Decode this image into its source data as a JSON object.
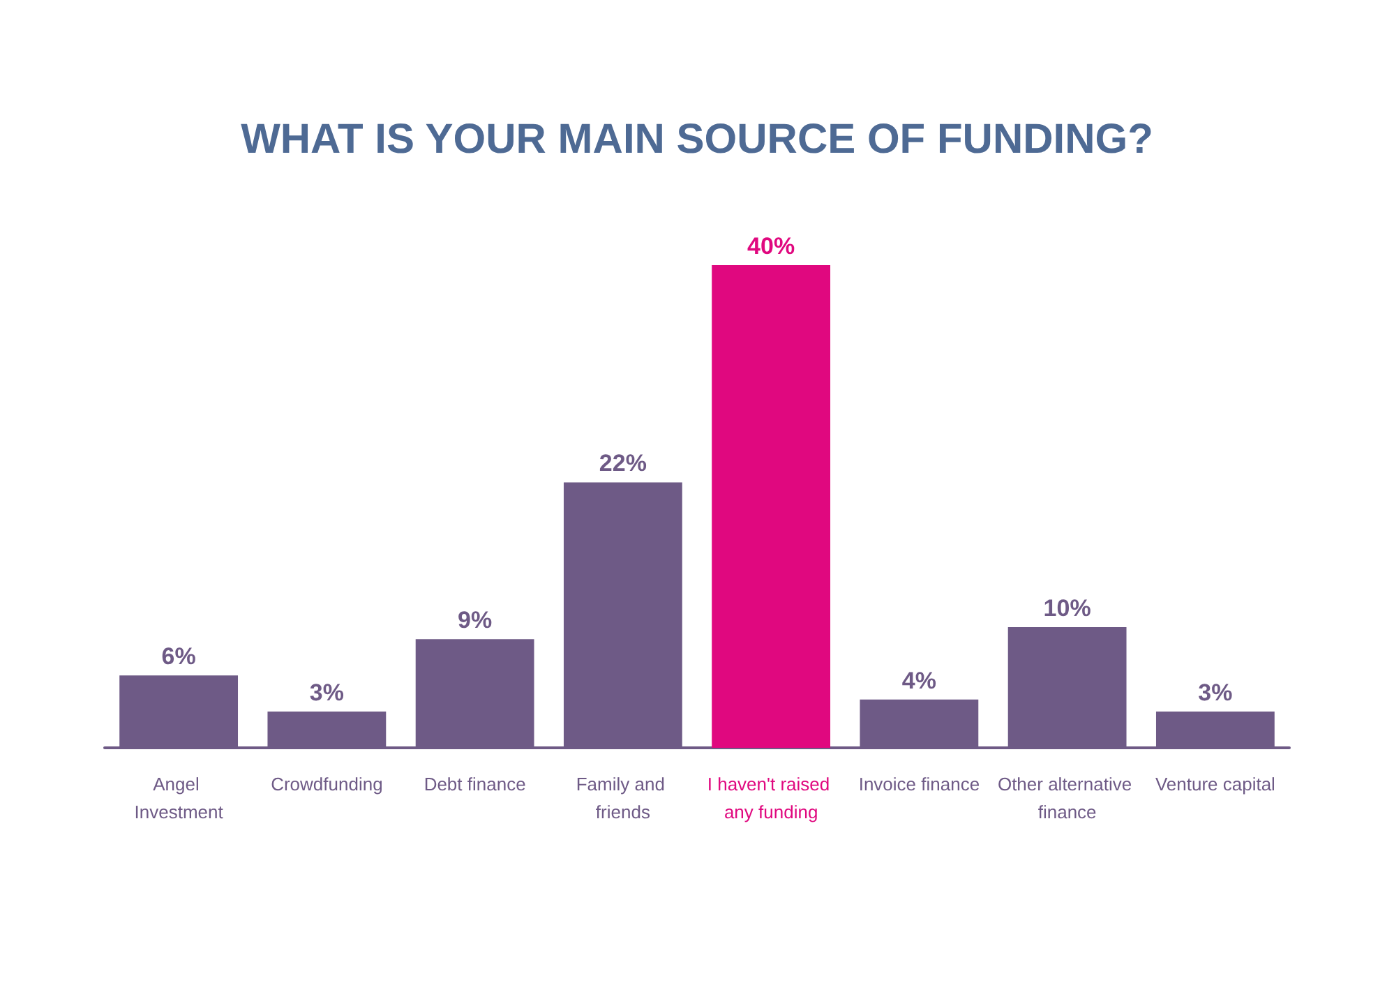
{
  "chart_data": {
    "type": "bar",
    "title": "WHAT IS YOUR MAIN SOURCE OF FUNDING?",
    "categories": [
      "Angel Investment",
      "Crowdfunding",
      "Debt finance",
      "Family and friends",
      "I haven't raised any funding",
      "Invoice finance",
      "Other alternative finance",
      "Venture capital"
    ],
    "values": [
      6,
      3,
      9,
      22,
      40,
      4,
      10,
      3
    ],
    "colors": [
      "#6e5a86",
      "#6e5a86",
      "#6e5a86",
      "#6e5a86",
      "#e0087f",
      "#6e5a86",
      "#6e5a86",
      "#6e5a86"
    ],
    "value_labels": [
      "6%",
      "3%",
      "9%",
      "22%",
      "40%",
      "4%",
      "10%",
      "3%"
    ]
  }
}
